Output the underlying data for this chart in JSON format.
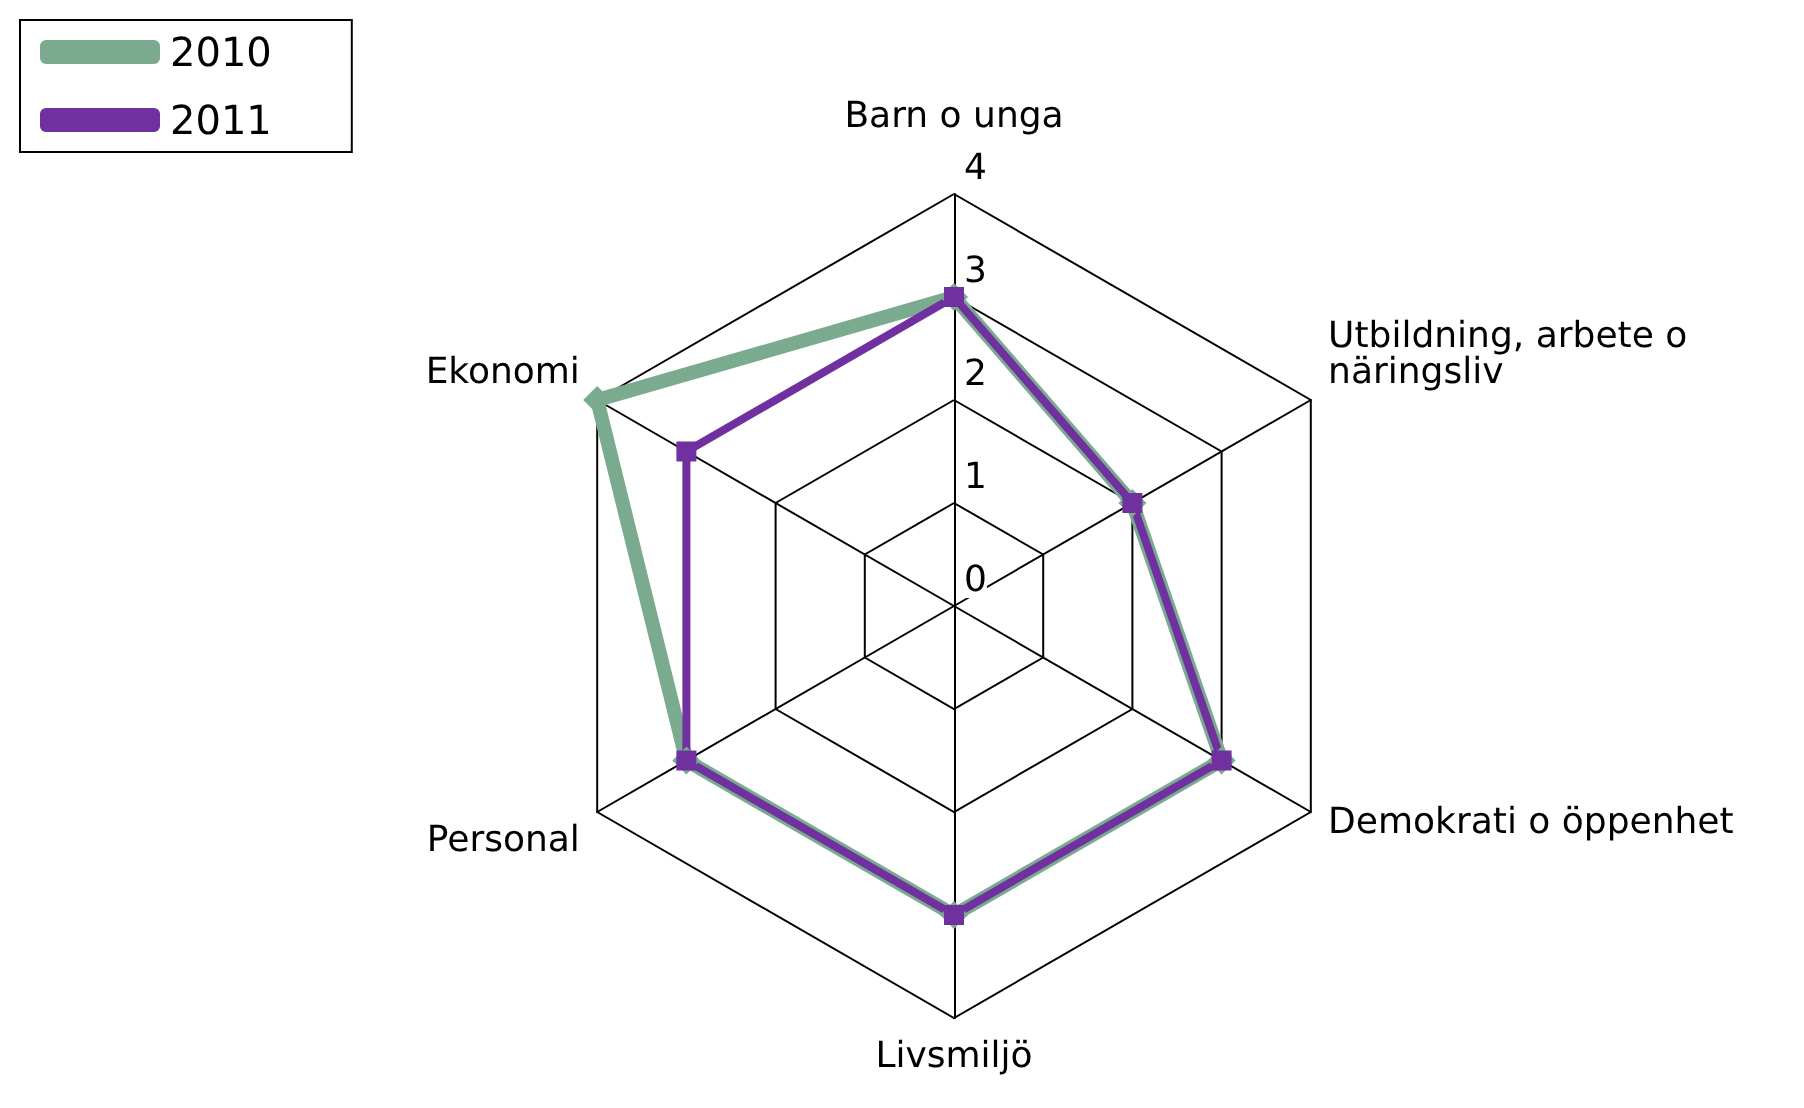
{
  "chart_data": {
    "type": "radar",
    "categories": [
      "Barn o unga",
      "Utbildning, arbete o näringsliv",
      "Demokrati o öppenhet",
      "Livsmiljö",
      "Personal",
      "Ekonomi"
    ],
    "series": [
      {
        "name": "2010",
        "color": "#7aab8f",
        "marker": "diamond",
        "values": [
          3,
          2,
          3,
          3,
          3,
          4
        ]
      },
      {
        "name": "2011",
        "color": "#7030a0",
        "marker": "square",
        "values": [
          3,
          2,
          3,
          3,
          3,
          3
        ]
      }
    ],
    "ylim": [
      0,
      4
    ],
    "yticks": [
      0,
      1,
      2,
      3,
      4
    ],
    "legend": "top left"
  }
}
